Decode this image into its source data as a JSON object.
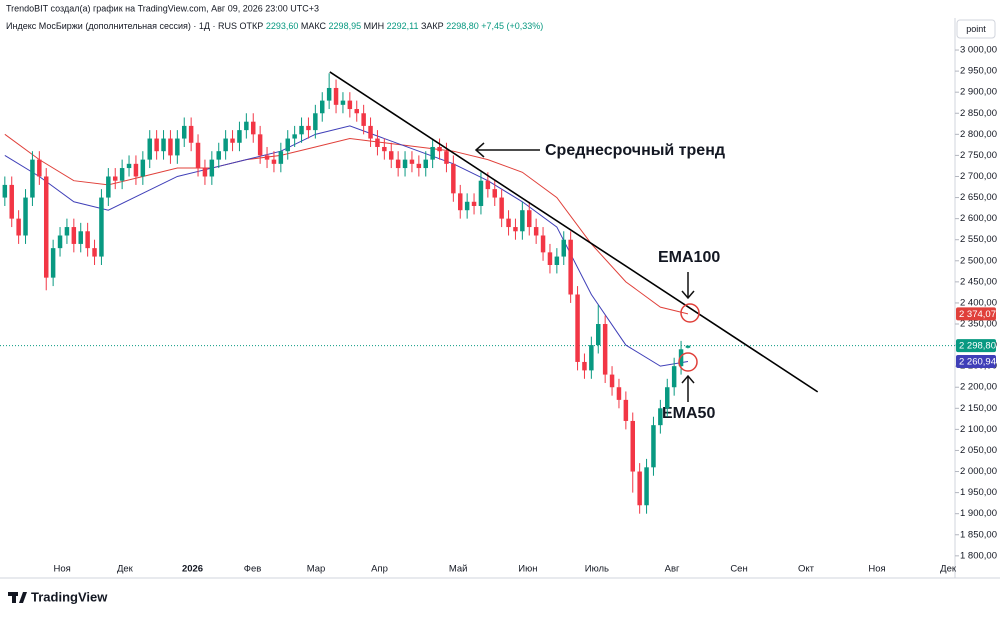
{
  "header": {
    "credit": "TrendoBIT создал(а) график на TradingView.com, Авг 09, 2026 23:00 UTC+3",
    "instrument": "Индекс МосБиржи (дополнительная сессия) · 1Д · RUS",
    "ohlc": [
      {
        "name": "ОТКР",
        "label": "2293,60"
      },
      {
        "name": "МАКС",
        "label": "2298,95"
      },
      {
        "name": "МИН",
        "label": "2292,11"
      },
      {
        "name": "ЗАКР",
        "label": "2298,80"
      }
    ],
    "change": "+7,45 (+0,33%)"
  },
  "scale_button": "point",
  "footer": {
    "logo": "TradingView"
  },
  "chart_data": {
    "type": "candlestick",
    "up_color": "#089981",
    "down_color": "#f23645",
    "x": [
      0,
      1,
      2,
      3,
      4,
      5,
      6,
      7,
      8,
      9,
      10,
      11,
      12,
      13,
      14,
      15,
      16,
      17,
      18,
      19,
      20,
      21,
      22,
      23,
      24,
      25,
      26,
      27,
      28,
      29,
      30,
      31,
      32,
      33,
      34,
      35,
      36,
      37,
      38,
      39,
      40,
      41,
      42,
      43,
      44,
      45,
      46,
      47,
      48,
      49,
      50,
      51,
      52,
      53,
      54,
      55,
      56,
      57,
      58,
      59,
      60,
      61,
      62,
      63,
      64,
      65,
      66,
      67,
      68,
      69,
      70,
      71,
      72,
      73,
      74,
      75,
      76,
      77,
      78,
      79,
      80,
      81,
      82,
      83,
      84,
      85,
      86,
      87,
      88,
      89,
      90,
      91,
      92,
      93,
      94,
      95,
      96,
      97,
      98,
      99
    ],
    "open": [
      2650,
      2680,
      2600,
      2560,
      2650,
      2740,
      2700,
      2460,
      2530,
      2560,
      2580,
      2540,
      2570,
      2530,
      2510,
      2650,
      2700,
      2690,
      2720,
      2730,
      2700,
      2740,
      2790,
      2760,
      2790,
      2750,
      2790,
      2820,
      2780,
      2720,
      2700,
      2740,
      2760,
      2790,
      2780,
      2810,
      2830,
      2800,
      2750,
      2740,
      2730,
      2760,
      2790,
      2800,
      2820,
      2810,
      2850,
      2880,
      2910,
      2870,
      2880,
      2860,
      2850,
      2820,
      2790,
      2770,
      2760,
      2740,
      2720,
      2740,
      2730,
      2720,
      2740,
      2770,
      2760,
      2730,
      2660,
      2620,
      2640,
      2630,
      2690,
      2670,
      2650,
      2600,
      2580,
      2570,
      2620,
      2580,
      2560,
      2520,
      2490,
      2510,
      2550,
      2420,
      2260,
      2240,
      2300,
      2350,
      2230,
      2200,
      2170,
      2120,
      2000,
      1920,
      2010,
      2110,
      2150,
      2200,
      2250,
      2293.6
    ],
    "high": [
      2700,
      2700,
      2620,
      2670,
      2760,
      2760,
      2720,
      2550,
      2580,
      2600,
      2600,
      2590,
      2590,
      2550,
      2670,
      2720,
      2720,
      2740,
      2750,
      2750,
      2760,
      2810,
      2810,
      2810,
      2810,
      2810,
      2840,
      2840,
      2800,
      2740,
      2760,
      2780,
      2810,
      2810,
      2830,
      2850,
      2850,
      2820,
      2770,
      2760,
      2780,
      2810,
      2820,
      2840,
      2840,
      2870,
      2900,
      2945,
      2930,
      2900,
      2900,
      2880,
      2870,
      2840,
      2810,
      2790,
      2780,
      2760,
      2760,
      2760,
      2750,
      2760,
      2790,
      2790,
      2780,
      2750,
      2680,
      2660,
      2660,
      2710,
      2710,
      2690,
      2670,
      2620,
      2600,
      2640,
      2640,
      2600,
      2580,
      2540,
      2530,
      2570,
      2570,
      2440,
      2280,
      2320,
      2395,
      2370,
      2250,
      2220,
      2190,
      2140,
      2020,
      2030,
      2130,
      2170,
      2220,
      2270,
      2310,
      2298.95
    ],
    "low": [
      2630,
      2580,
      2540,
      2540,
      2630,
      2680,
      2430,
      2440,
      2510,
      2540,
      2520,
      2520,
      2510,
      2490,
      2490,
      2630,
      2670,
      2670,
      2700,
      2680,
      2680,
      2720,
      2740,
      2740,
      2730,
      2730,
      2770,
      2760,
      2700,
      2680,
      2680,
      2720,
      2740,
      2760,
      2760,
      2790,
      2780,
      2730,
      2720,
      2710,
      2710,
      2740,
      2770,
      2780,
      2790,
      2790,
      2830,
      2860,
      2850,
      2850,
      2840,
      2830,
      2800,
      2770,
      2750,
      2740,
      2720,
      2700,
      2700,
      2710,
      2700,
      2700,
      2720,
      2740,
      2710,
      2640,
      2600,
      2600,
      2610,
      2610,
      2650,
      2630,
      2580,
      2560,
      2550,
      2550,
      2560,
      2540,
      2500,
      2470,
      2470,
      2490,
      2400,
      2240,
      2220,
      2220,
      2280,
      2210,
      2180,
      2150,
      2100,
      1950,
      1900,
      1900,
      1990,
      2090,
      2130,
      2180,
      2230,
      2292.11
    ],
    "close": [
      2680,
      2600,
      2560,
      2650,
      2740,
      2700,
      2460,
      2530,
      2560,
      2580,
      2540,
      2570,
      2530,
      2510,
      2650,
      2700,
      2690,
      2720,
      2730,
      2700,
      2740,
      2790,
      2760,
      2790,
      2750,
      2790,
      2820,
      2780,
      2720,
      2700,
      2740,
      2760,
      2790,
      2780,
      2810,
      2830,
      2800,
      2750,
      2740,
      2730,
      2760,
      2790,
      2800,
      2820,
      2810,
      2850,
      2880,
      2910,
      2870,
      2880,
      2860,
      2850,
      2820,
      2790,
      2770,
      2760,
      2740,
      2720,
      2740,
      2730,
      2720,
      2740,
      2770,
      2760,
      2730,
      2660,
      2620,
      2640,
      2630,
      2690,
      2670,
      2650,
      2600,
      2580,
      2570,
      2620,
      2580,
      2560,
      2520,
      2490,
      2510,
      2550,
      2420,
      2260,
      2240,
      2300,
      2350,
      2230,
      2200,
      2170,
      2120,
      2000,
      1920,
      2010,
      2110,
      2150,
      2200,
      2250,
      2290,
      2298.8
    ],
    "series": [
      {
        "color": "#e0403a",
        "x": [
          0,
          5,
          10,
          15,
          20,
          25,
          30,
          35,
          40,
          45,
          50,
          55,
          60,
          65,
          70,
          75,
          80,
          85,
          90,
          95,
          99
        ],
        "values": [
          2800,
          2740,
          2690,
          2680,
          2700,
          2720,
          2720,
          2740,
          2750,
          2770,
          2790,
          2780,
          2770,
          2760,
          2740,
          2710,
          2650,
          2540,
          2450,
          2390,
          2374.07
        ]
      },
      {
        "color": "#3f3fb8",
        "x": [
          0,
          5,
          10,
          15,
          20,
          25,
          30,
          35,
          40,
          45,
          50,
          55,
          60,
          65,
          70,
          75,
          80,
          85,
          90,
          95,
          99
        ],
        "values": [
          2750,
          2700,
          2640,
          2620,
          2660,
          2700,
          2720,
          2740,
          2760,
          2800,
          2820,
          2790,
          2760,
          2730,
          2690,
          2640,
          2580,
          2420,
          2300,
          2250,
          2260.94
        ]
      }
    ],
    "price_labels": [
      {
        "value": 2374.07,
        "label": "2 374,07",
        "color": "#e0403a"
      },
      {
        "value": 2298.8,
        "label": "2 298,80",
        "color": "#089981"
      },
      {
        "value": 2260.94,
        "label": "2 260,94",
        "color": "#3f3fb8"
      }
    ],
    "last_price": 2298.8,
    "xlim": [
      -0.7,
      137.7
    ],
    "xticks": [
      {
        "value": 8.3,
        "label": "Ноя"
      },
      {
        "value": 17.4,
        "label": "Дек"
      },
      {
        "value": 27.2,
        "label": "2026"
      },
      {
        "value": 35.9,
        "label": "Фев"
      },
      {
        "value": 45.1,
        "label": "Мар"
      },
      {
        "value": 54.3,
        "label": "Апр"
      },
      {
        "value": 65.7,
        "label": "Май"
      },
      {
        "value": 75.8,
        "label": "Июн"
      },
      {
        "value": 85.8,
        "label": "Июль"
      },
      {
        "value": 96.7,
        "label": "Авг"
      },
      {
        "value": 106.4,
        "label": "Сен"
      },
      {
        "value": 116.1,
        "label": "Окт"
      },
      {
        "value": 126.4,
        "label": "Ноя"
      },
      {
        "value": 136.7,
        "label": "Дек"
      }
    ],
    "ylim": [
      1783,
      3076
    ],
    "yticks": [
      {
        "value": 1800,
        "label": "1 800,00"
      },
      {
        "value": 1850,
        "label": "1 850,00"
      },
      {
        "value": 1900,
        "label": "1 900,00"
      },
      {
        "value": 1950,
        "label": "1 950,00"
      },
      {
        "value": 2000,
        "label": "2 000,00"
      },
      {
        "value": 2050,
        "label": "2 050,00"
      },
      {
        "value": 2100,
        "label": "2 100,00"
      },
      {
        "value": 2150,
        "label": "2 150,00"
      },
      {
        "value": 2200,
        "label": "2 200,00"
      },
      {
        "value": 2250,
        "label": "2 250,00"
      },
      {
        "value": 2300,
        "label": "2 300,00"
      },
      {
        "value": 2350,
        "label": "2 350,00"
      },
      {
        "value": 2400,
        "label": "2 400,00"
      },
      {
        "value": 2450,
        "label": "2 450,00"
      },
      {
        "value": 2500,
        "label": "2 500,00"
      },
      {
        "value": 2550,
        "label": "2 550,00"
      },
      {
        "value": 2600,
        "label": "2 600,00"
      },
      {
        "value": 2650,
        "label": "2 650,00"
      },
      {
        "value": 2700,
        "label": "2 700,00"
      },
      {
        "value": 2750,
        "label": "2 750,00"
      },
      {
        "value": 2800,
        "label": "2 800,00"
      },
      {
        "value": 2850,
        "label": "2 850,00"
      },
      {
        "value": 2900,
        "label": "2 900,00"
      },
      {
        "value": 2950,
        "label": "2 950,00"
      },
      {
        "value": 3000,
        "label": "3 000,00"
      }
    ],
    "trendline": {
      "x": [
        47.1,
        117.8
      ],
      "y": [
        2948,
        2189
      ]
    },
    "annotations": [
      "Среднесрочный тренд",
      "EMA100",
      "EMA50"
    ]
  }
}
